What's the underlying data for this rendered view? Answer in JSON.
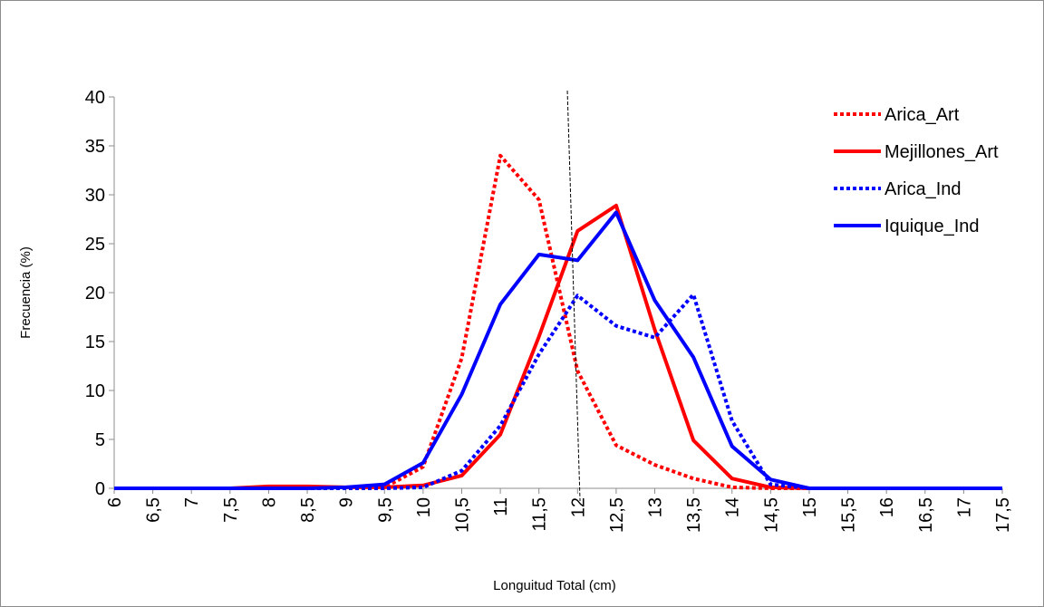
{
  "chart_data": {
    "type": "line",
    "title": "",
    "xlabel": "Longuitud Total (cm)",
    "ylabel": "Frecuencia (%)",
    "x": [
      6,
      6.5,
      7,
      7.5,
      8,
      8.5,
      9,
      9.5,
      10,
      10.5,
      11,
      11.5,
      12,
      12.5,
      13,
      13.5,
      14,
      14.5,
      15,
      15.5,
      16,
      16.5,
      17,
      17.5
    ],
    "x_tick_labels": [
      "6",
      "6,5",
      "7",
      "7,5",
      "8",
      "8,5",
      "9",
      "9,5",
      "10",
      "10,5",
      "11",
      "11,5",
      "12",
      "12,5",
      "13",
      "13,5",
      "14",
      "14,5",
      "15",
      "15,5",
      "16",
      "16,5",
      "17",
      "17,5"
    ],
    "y_ticks": [
      0,
      5,
      10,
      15,
      20,
      25,
      30,
      35,
      40
    ],
    "ylim": [
      0,
      40
    ],
    "reference_line_x": 11.95,
    "legend_position": "top-right",
    "grid": false,
    "series": [
      {
        "name": "Arica_Art",
        "color": "#ff0000",
        "dash": "dotted",
        "values": [
          0,
          0,
          0,
          0,
          0,
          0,
          0,
          0.1,
          2.2,
          13.3,
          34.0,
          29.5,
          12.0,
          4.4,
          2.4,
          1.0,
          0.1,
          0,
          0,
          0,
          0,
          0,
          0,
          0
        ]
      },
      {
        "name": "Mejillones_Art",
        "color": "#ff0000",
        "dash": "solid",
        "values": [
          0,
          0,
          0,
          0,
          0.2,
          0.2,
          0.1,
          0.1,
          0.3,
          1.3,
          5.5,
          15.5,
          26.3,
          28.9,
          16.2,
          4.9,
          1.0,
          0.1,
          0,
          0,
          0,
          0,
          0,
          0
        ]
      },
      {
        "name": "Arica_Ind",
        "color": "#0000ff",
        "dash": "dotted",
        "values": [
          0,
          0,
          0,
          0,
          0,
          0,
          0,
          0,
          0.1,
          1.8,
          6.4,
          13.7,
          19.7,
          16.6,
          15.4,
          19.8,
          6.9,
          0.4,
          0,
          0,
          0,
          0,
          0,
          0
        ]
      },
      {
        "name": "Iquique_Ind",
        "color": "#0000ff",
        "dash": "solid",
        "values": [
          0,
          0,
          0,
          0,
          0,
          0,
          0.1,
          0.4,
          2.6,
          9.6,
          18.8,
          23.9,
          23.3,
          28.2,
          19.2,
          13.4,
          4.3,
          0.9,
          0,
          0,
          0,
          0,
          0,
          0
        ]
      }
    ]
  }
}
